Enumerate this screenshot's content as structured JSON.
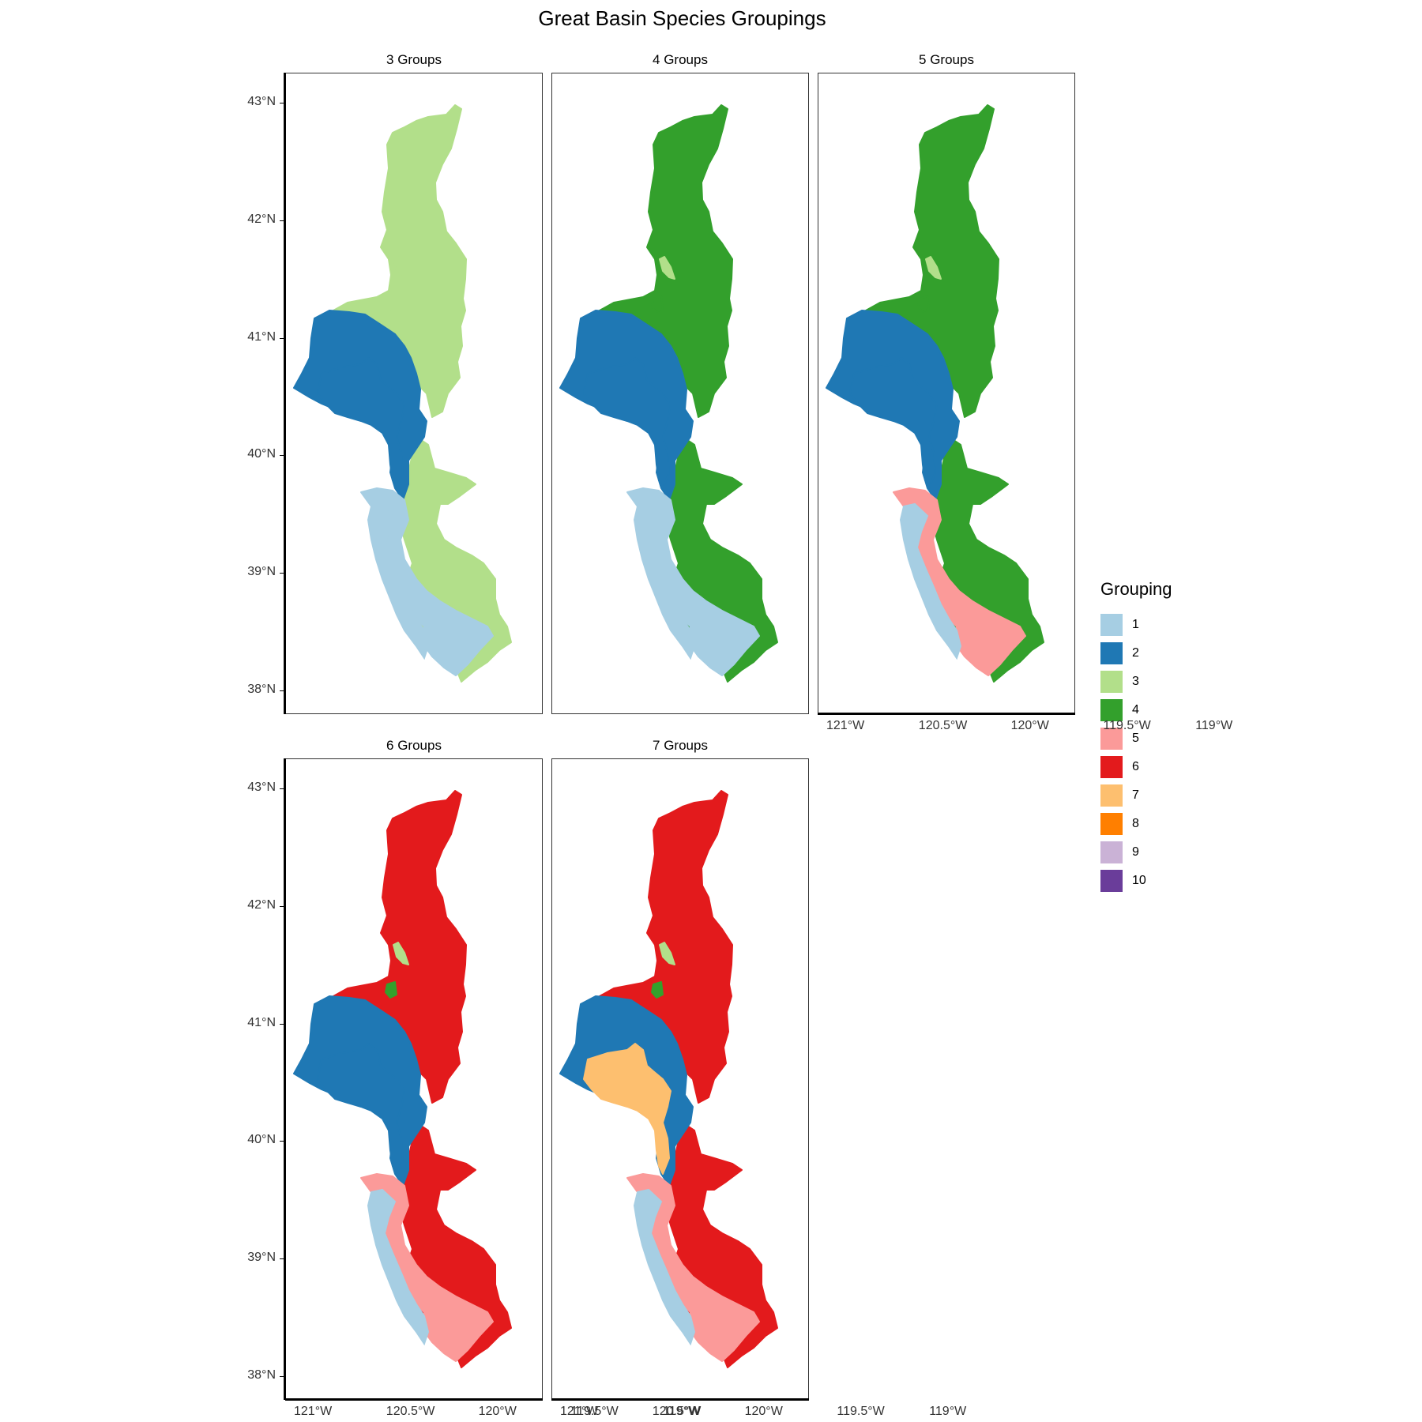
{
  "title": "Great Basin Species Groupings",
  "legend": {
    "title": "Grouping",
    "items": [
      {
        "label": "1",
        "color": "#a6cee3"
      },
      {
        "label": "2",
        "color": "#1f78b4"
      },
      {
        "label": "3",
        "color": "#b2df8a"
      },
      {
        "label": "4",
        "color": "#33a02c"
      },
      {
        "label": "5",
        "color": "#fb9a99"
      },
      {
        "label": "6",
        "color": "#e31a1c"
      },
      {
        "label": "7",
        "color": "#fdbf6f"
      },
      {
        "label": "8",
        "color": "#ff7f00"
      },
      {
        "label": "9",
        "color": "#cab2d6"
      },
      {
        "label": "10",
        "color": "#6a3d9a"
      }
    ]
  },
  "axes": {
    "y_ticks": [
      "43°N",
      "42°N",
      "41°N",
      "40°N",
      "39°N",
      "38°N"
    ],
    "x_ticks": [
      "121°W",
      "120.5°W",
      "120°W",
      "119.5°W",
      "119°W"
    ]
  },
  "panels": [
    {
      "title": "3 Groups",
      "zones": {
        "north": "3",
        "west": "2",
        "south_east": "3",
        "south_west": "1",
        "south_mix": "1",
        "small_a": "3",
        "small_b": "3",
        "west_inner": "2"
      }
    },
    {
      "title": "4 Groups",
      "zones": {
        "north": "4",
        "west": "2",
        "south_east": "4",
        "south_west": "1",
        "south_mix": "1",
        "small_a": "3",
        "small_b": "4",
        "west_inner": "2"
      }
    },
    {
      "title": "5 Groups",
      "zones": {
        "north": "4",
        "west": "2",
        "south_east": "4",
        "south_west": "1",
        "south_mix": "5",
        "small_a": "3",
        "small_b": "4",
        "west_inner": "2"
      }
    },
    {
      "title": "6 Groups",
      "zones": {
        "north": "6",
        "west": "2",
        "south_east": "6",
        "south_west": "1",
        "south_mix": "5",
        "small_a": "3",
        "small_b": "4",
        "west_inner": "2"
      }
    },
    {
      "title": "7 Groups",
      "zones": {
        "north": "6",
        "west": "2",
        "south_east": "6",
        "south_west": "1",
        "south_mix": "5",
        "small_a": "3",
        "small_b": "4",
        "west_inner": "7"
      }
    }
  ]
}
